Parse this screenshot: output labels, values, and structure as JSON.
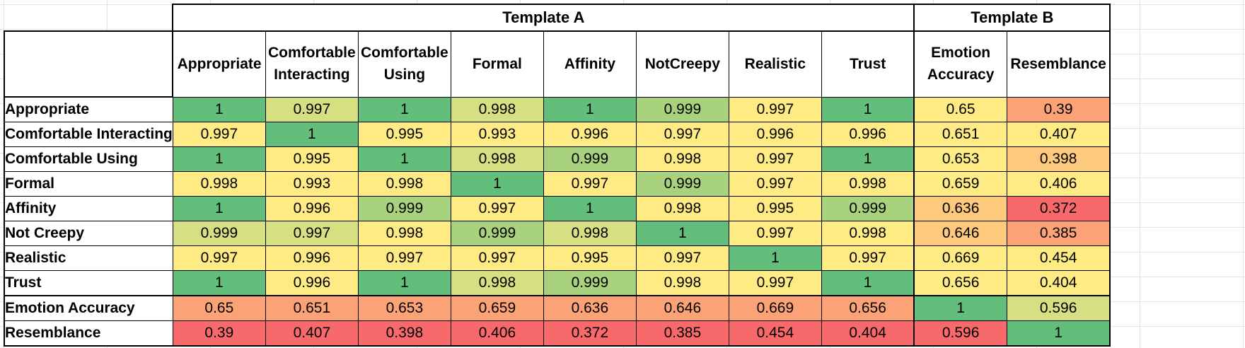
{
  "groups": {
    "template_a": "Template A",
    "template_b": "Template B"
  },
  "columns": [
    {
      "line1": "Appropriate",
      "line2": ""
    },
    {
      "line1": "Comfortable",
      "line2": "Interacting"
    },
    {
      "line1": "Comfortable",
      "line2": "Using"
    },
    {
      "line1": "Formal",
      "line2": ""
    },
    {
      "line1": "Affinity",
      "line2": ""
    },
    {
      "line1": "NotCreepy",
      "line2": ""
    },
    {
      "line1": "Realistic",
      "line2": ""
    },
    {
      "line1": "Trust",
      "line2": ""
    },
    {
      "line1": "Emotion",
      "line2": "Accuracy"
    },
    {
      "line1": "Resemblance",
      "line2": ""
    }
  ],
  "rows": [
    {
      "label": "Appropriate",
      "values": [
        "1",
        "0.997",
        "1",
        "0.998",
        "1",
        "0.999",
        "0.997",
        "1",
        "0.65",
        "0.39"
      ]
    },
    {
      "label": "Comfortable Interacting",
      "values": [
        "0.997",
        "1",
        "0.995",
        "0.993",
        "0.996",
        "0.997",
        "0.996",
        "0.996",
        "0.651",
        "0.407"
      ]
    },
    {
      "label": "Comfortable Using",
      "values": [
        "1",
        "0.995",
        "1",
        "0.998",
        "0.999",
        "0.998",
        "0.997",
        "1",
        "0.653",
        "0.398"
      ]
    },
    {
      "label": "Formal",
      "values": [
        "0.998",
        "0.993",
        "0.998",
        "1",
        "0.997",
        "0.999",
        "0.997",
        "0.998",
        "0.659",
        "0.406"
      ]
    },
    {
      "label": "Affinity",
      "values": [
        "1",
        "0.996",
        "0.999",
        "0.997",
        "1",
        "0.998",
        "0.995",
        "0.999",
        "0.636",
        "0.372"
      ]
    },
    {
      "label": "Not Creepy",
      "values": [
        "0.999",
        "0.997",
        "0.998",
        "0.999",
        "0.998",
        "1",
        "0.997",
        "0.998",
        "0.646",
        "0.385"
      ]
    },
    {
      "label": "Realistic",
      "values": [
        "0.997",
        "0.996",
        "0.997",
        "0.997",
        "0.995",
        "0.997",
        "1",
        "0.997",
        "0.669",
        "0.454"
      ]
    },
    {
      "label": "Trust",
      "values": [
        "1",
        "0.996",
        "1",
        "0.998",
        "0.999",
        "0.998",
        "0.997",
        "1",
        "0.656",
        "0.404"
      ]
    },
    {
      "label": "Emotion Accuracy",
      "values": [
        "0.65",
        "0.651",
        "0.653",
        "0.659",
        "0.636",
        "0.646",
        "0.669",
        "0.656",
        "1",
        "0.596"
      ]
    },
    {
      "label": "Resemblance",
      "values": [
        "0.39",
        "0.407",
        "0.398",
        "0.406",
        "0.372",
        "0.385",
        "0.454",
        "0.404",
        "0.596",
        "1"
      ]
    }
  ],
  "colors": {
    "green": "#63be7b",
    "light_green": "#a9d27f",
    "yellow_green": "#d6e082",
    "yellow": "#ffeb84",
    "light_orange": "#fdc97d",
    "orange": "#fba376",
    "salmon": "#f9906f",
    "red": "#f8696b",
    "border": "#000000"
  },
  "cell_colors": [
    [
      "green",
      "yellow_green",
      "green",
      "yellow_green",
      "green",
      "light_green",
      "yellow",
      "green",
      "yellow",
      "orange"
    ],
    [
      "yellow",
      "green",
      "yellow",
      "yellow",
      "yellow",
      "yellow",
      "yellow",
      "yellow",
      "yellow",
      "yellow"
    ],
    [
      "green",
      "yellow",
      "green",
      "yellow_green",
      "light_green",
      "yellow",
      "yellow",
      "green",
      "yellow",
      "light_orange"
    ],
    [
      "yellow",
      "yellow",
      "yellow",
      "green",
      "yellow",
      "light_green",
      "yellow",
      "yellow",
      "yellow",
      "yellow"
    ],
    [
      "green",
      "yellow",
      "light_green",
      "yellow",
      "green",
      "yellow",
      "yellow",
      "light_green",
      "light_orange",
      "red"
    ],
    [
      "yellow_green",
      "yellow_green",
      "yellow",
      "light_green",
      "yellow_green",
      "green",
      "yellow",
      "yellow",
      "light_orange",
      "orange"
    ],
    [
      "yellow",
      "yellow",
      "yellow",
      "yellow",
      "yellow",
      "yellow",
      "green",
      "yellow",
      "yellow",
      "yellow"
    ],
    [
      "green",
      "yellow",
      "green",
      "yellow_green",
      "light_green",
      "yellow",
      "yellow",
      "green",
      "yellow",
      "yellow"
    ],
    [
      "orange",
      "orange",
      "orange",
      "orange",
      "orange",
      "orange",
      "orange",
      "orange",
      "green",
      "yellow_green"
    ],
    [
      "red",
      "red",
      "red",
      "red",
      "red",
      "red",
      "red",
      "red",
      "red",
      "green"
    ]
  ]
}
